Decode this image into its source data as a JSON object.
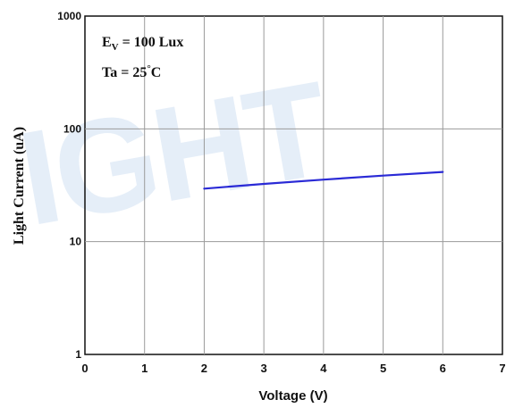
{
  "chart_data": {
    "type": "line",
    "xlabel": "Voltage (V)",
    "ylabel": "Light Current (uA)",
    "x_ticks": [
      "0",
      "1",
      "2",
      "3",
      "4",
      "5",
      "6",
      "7"
    ],
    "y_ticks": [
      "1",
      "10",
      "100",
      "1000"
    ],
    "xlim": [
      0,
      7
    ],
    "ylim": [
      1,
      1000
    ],
    "y_scale": "log",
    "grid": true,
    "series": [
      {
        "color": "#2a2ad6",
        "x": [
          2,
          3,
          4,
          5,
          6
        ],
        "y": [
          29.5,
          32.5,
          35.5,
          38.5,
          41.5
        ]
      }
    ],
    "annotations": {
      "ev_symbol": "E",
      "ev_subscript": "V",
      "ev_text": " = 100 Lux",
      "ta_text": "Ta = 25",
      "ta_degree": "°",
      "ta_unit": "C"
    },
    "watermark": "IGHT"
  }
}
